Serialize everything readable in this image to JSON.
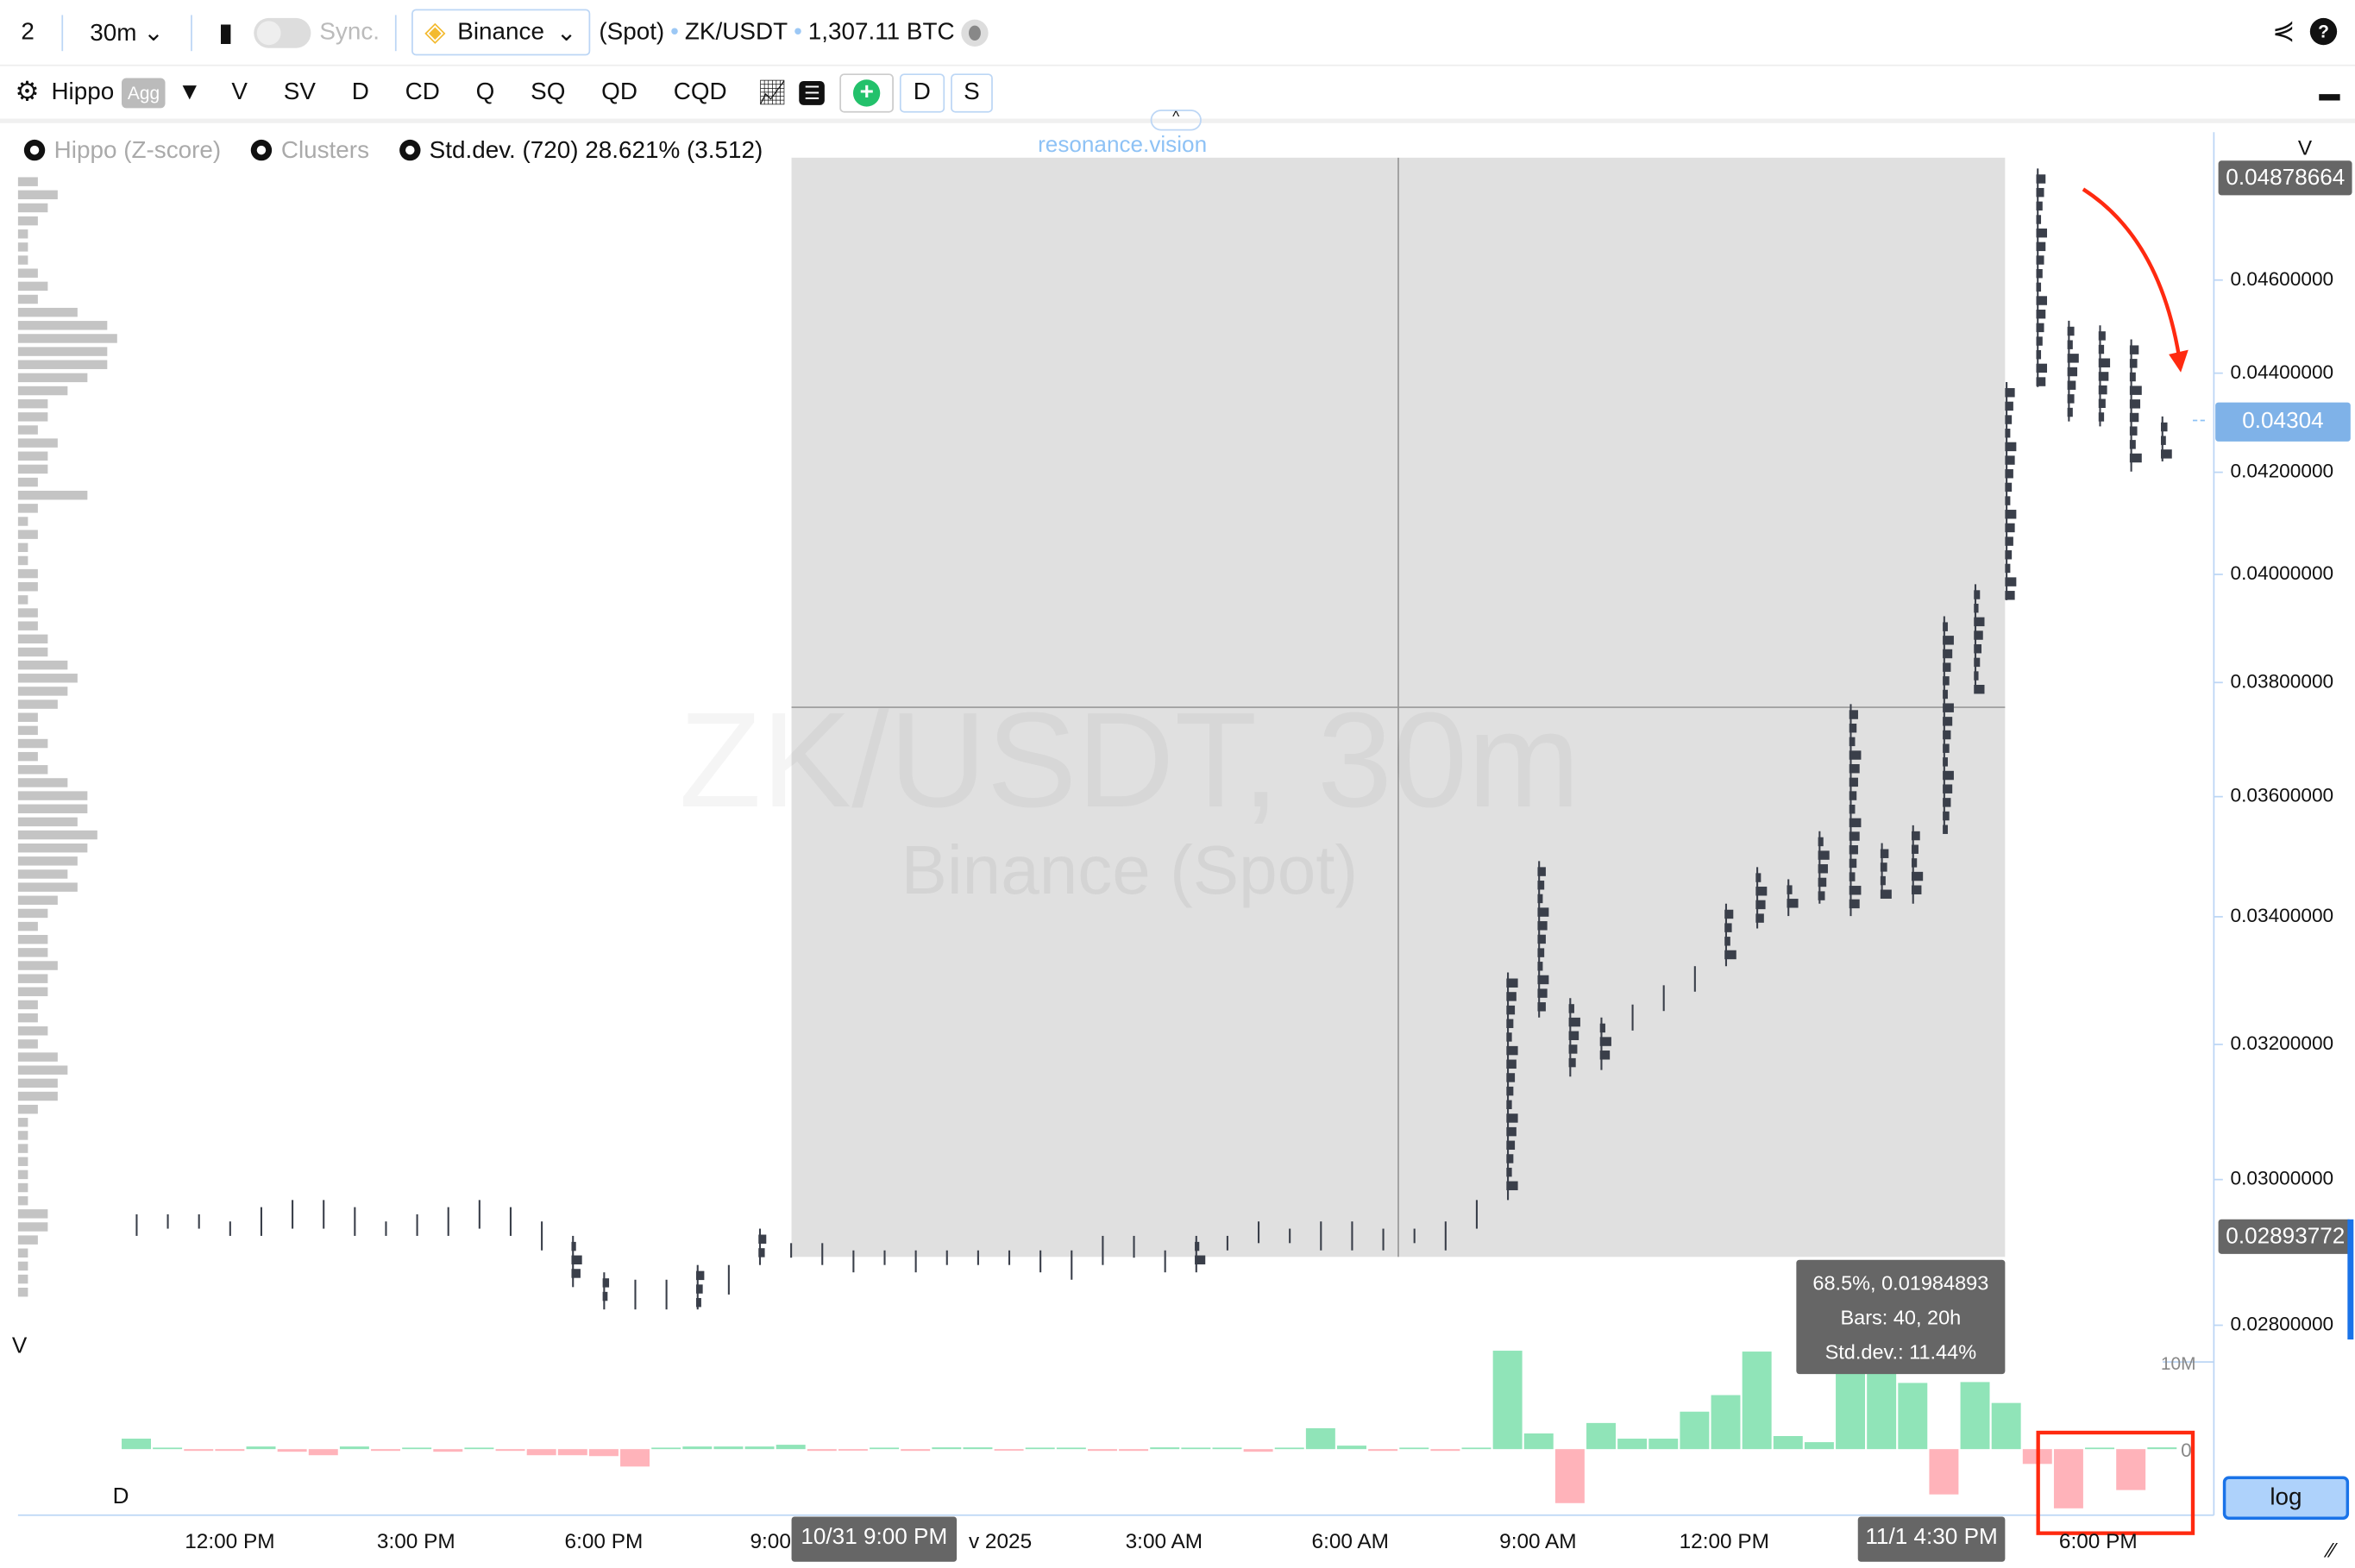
{
  "toolbar": {
    "layout_count": "2",
    "interval": "30m",
    "sync_label": "Sync.",
    "exchange": "Binance",
    "market": "(Spot)",
    "symbol": "ZK/USDT",
    "volume": "1,307.11 BTC"
  },
  "indicators": {
    "hippo": "Hippo",
    "agg": "Agg",
    "items": [
      "V",
      "SV",
      "D",
      "CD",
      "Q",
      "SQ",
      "QD",
      "CQD"
    ],
    "d_btn": "D",
    "s_btn": "S"
  },
  "legend": {
    "hippo_z": "Hippo (Z-score)",
    "clusters": "Clusters",
    "stddev": "Std.dev. (720) 28.621% (3.512)"
  },
  "brand": "resonance.vision",
  "watermark": {
    "line1": "ZK/USDT, 30m",
    "line2": "Binance (Spot)"
  },
  "price_axis": {
    "ticks": [
      "0.04600000",
      "0.04400000",
      "0.04200000",
      "0.04000000",
      "0.03800000",
      "0.03600000",
      "0.03400000",
      "0.03200000",
      "0.03000000",
      "0.02800000"
    ],
    "high_label": "0.04878664",
    "last_price": "0.04304",
    "cross_price": "0.02893772",
    "v_label": "V",
    "scale": "log"
  },
  "delta_axis": {
    "label_10m": "10M",
    "label_0": "0"
  },
  "panel_labels": {
    "v": "V",
    "d": "D"
  },
  "time_axis": {
    "ticks": [
      "12:00 PM",
      "3:00 PM",
      "6:00 PM",
      "9:00",
      "v 2025",
      "3:00 AM",
      "6:00 AM",
      "9:00 AM",
      "12:00 PM",
      "6:00 PM"
    ],
    "start_marker": "10/31 9:00 PM",
    "end_marker": "11/1 4:30 PM"
  },
  "selection_tooltip": {
    "line1": "68.5%, 0.01984893",
    "line2": "Bars: 40, 20h",
    "line3": "Std.dev.: 11.44%"
  },
  "log_button": "log",
  "colors": {
    "up": "#90e4b8",
    "down": "#ffb3ba",
    "accent": "#1a73e8",
    "annotation": "#ff2a10",
    "candle": "#3a3f4a"
  },
  "chart_data": {
    "type": "candlestick",
    "candles_low_high": [
      [
        0.0292,
        0.0295
      ],
      [
        0.0293,
        0.0295
      ],
      [
        0.0293,
        0.0295
      ],
      [
        0.0292,
        0.0294
      ],
      [
        0.0292,
        0.0296
      ],
      [
        0.0293,
        0.0297
      ],
      [
        0.0293,
        0.0297
      ],
      [
        0.0292,
        0.0296
      ],
      [
        0.0292,
        0.0294
      ],
      [
        0.0292,
        0.0295
      ],
      [
        0.0292,
        0.0296
      ],
      [
        0.0293,
        0.0297
      ],
      [
        0.0292,
        0.0296
      ],
      [
        0.029,
        0.0294
      ],
      [
        0.0285,
        0.0292
      ],
      [
        0.0282,
        0.0287
      ],
      [
        0.0282,
        0.0286
      ],
      [
        0.0282,
        0.0286
      ],
      [
        0.0282,
        0.0288
      ],
      [
        0.0284,
        0.0288
      ],
      [
        0.0288,
        0.0293
      ],
      [
        0.0289,
        0.0291
      ],
      [
        0.0288,
        0.0291
      ],
      [
        0.0287,
        0.029
      ],
      [
        0.0288,
        0.029
      ],
      [
        0.0287,
        0.029
      ],
      [
        0.0288,
        0.029
      ],
      [
        0.0288,
        0.029
      ],
      [
        0.0288,
        0.029
      ],
      [
        0.0287,
        0.029
      ],
      [
        0.0286,
        0.029
      ],
      [
        0.0288,
        0.0292
      ],
      [
        0.0289,
        0.0292
      ],
      [
        0.0287,
        0.029
      ],
      [
        0.0287,
        0.0292
      ],
      [
        0.029,
        0.0292
      ],
      [
        0.0291,
        0.0294
      ],
      [
        0.0291,
        0.0293
      ],
      [
        0.029,
        0.0294
      ],
      [
        0.029,
        0.0294
      ],
      [
        0.029,
        0.0293
      ],
      [
        0.0291,
        0.0293
      ],
      [
        0.029,
        0.0294
      ],
      [
        0.0293,
        0.0297
      ],
      [
        0.0297,
        0.0331
      ],
      [
        0.0324,
        0.0349
      ],
      [
        0.0315,
        0.0327
      ],
      [
        0.0316,
        0.0324
      ],
      [
        0.0322,
        0.0326
      ],
      [
        0.0325,
        0.0329
      ],
      [
        0.0328,
        0.0332
      ],
      [
        0.0332,
        0.0342
      ],
      [
        0.0338,
        0.0348
      ],
      [
        0.034,
        0.0346
      ],
      [
        0.0342,
        0.0354
      ],
      [
        0.034,
        0.0376
      ],
      [
        0.0343,
        0.0352
      ],
      [
        0.0342,
        0.0355
      ],
      [
        0.0354,
        0.0392
      ],
      [
        0.0378,
        0.0398
      ],
      [
        0.0395,
        0.0438
      ],
      [
        0.0437,
        0.0485
      ],
      [
        0.043,
        0.0451
      ],
      [
        0.0429,
        0.045
      ],
      [
        0.042,
        0.0447
      ],
      [
        0.0422,
        0.0431
      ]
    ],
    "delta_millions": [
      1.2,
      0,
      -0.2,
      -0.2,
      0.3,
      -0.3,
      -0.7,
      0.3,
      -0.2,
      0.1,
      -0.3,
      0.1,
      -0.2,
      -0.7,
      -0.7,
      -0.8,
      -2.0,
      0.1,
      0.3,
      0.3,
      0.3,
      0.5,
      -0.2,
      -0.1,
      0.1,
      -0.2,
      0.2,
      0.2,
      -0.1,
      0.1,
      0.1,
      -0.2,
      -0.2,
      0.2,
      0.1,
      0.1,
      -0.3,
      0.1,
      2.4,
      0.4,
      -0.2,
      0.1,
      -0.2,
      0.1,
      11.3,
      1.8,
      -6.2,
      3.0,
      1.2,
      1.2,
      4.3,
      6.2,
      11.2,
      1.5,
      0.8,
      10.2,
      10.2,
      7.6,
      -5.2,
      7.7,
      5.3,
      -1.7,
      -6.8,
      0.1,
      -4.7,
      0.2
    ],
    "volume_profile_relative": [
      0.2,
      0.4,
      0.3,
      0.2,
      0.1,
      0.1,
      0.1,
      0.2,
      0.3,
      0.2,
      0.6,
      0.9,
      1.0,
      0.9,
      0.9,
      0.7,
      0.5,
      0.3,
      0.3,
      0.2,
      0.4,
      0.3,
      0.3,
      0.2,
      0.7,
      0.2,
      0.1,
      0.2,
      0.1,
      0.1,
      0.2,
      0.2,
      0.1,
      0.2,
      0.2,
      0.3,
      0.3,
      0.5,
      0.6,
      0.5,
      0.4,
      0.2,
      0.2,
      0.3,
      0.2,
      0.3,
      0.5,
      0.7,
      0.7,
      0.6,
      0.8,
      0.7,
      0.6,
      0.5,
      0.6,
      0.4,
      0.3,
      0.2,
      0.3,
      0.3,
      0.4,
      0.3,
      0.3,
      0.2,
      0.2,
      0.3,
      0.2,
      0.4,
      0.5,
      0.4,
      0.4,
      0.2,
      0.1,
      0.1,
      0.1,
      0.1,
      0.1,
      0.1,
      0.1,
      0.3,
      0.3,
      0.2,
      0.1,
      0.1,
      0.1,
      0.1
    ]
  }
}
